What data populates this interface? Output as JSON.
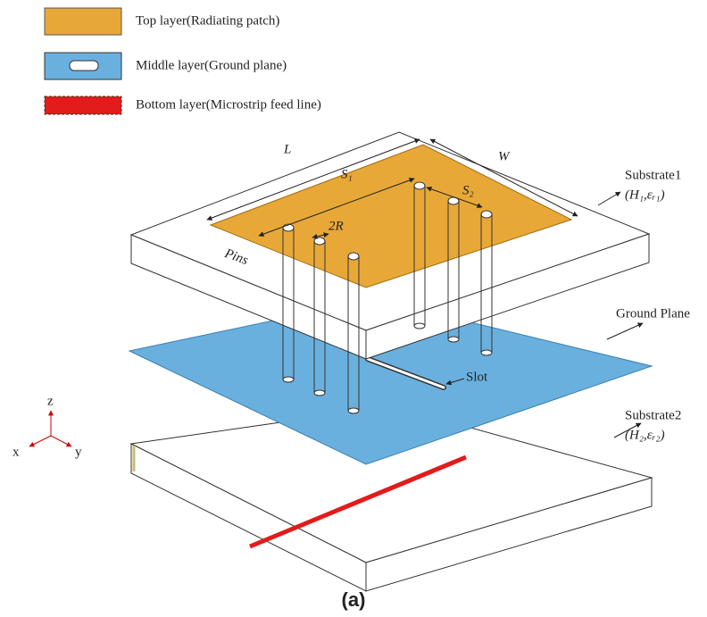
{
  "legend": {
    "items": [
      {
        "label": "Top layer(Radiating patch)"
      },
      {
        "label": "Middle layer(Ground plane)"
      },
      {
        "label": "Bottom layer(Microstrip feed line)"
      }
    ]
  },
  "labels": {
    "substrate1": "Substrate1",
    "substrate1_params": "(H₁,εᵣ₁)",
    "ground_plane": "Ground Plane",
    "slot": "Slot",
    "substrate2": "Substrate2",
    "substrate2_params": "(H₂,εᵣ₂)",
    "length": "L",
    "spacing1": "S₁",
    "spacing2": "S₂",
    "width": "W",
    "radius": "2R",
    "pins": "Pins"
  },
  "axes": {
    "z": "z",
    "x": "x",
    "y": "y"
  },
  "caption": "(a)"
}
